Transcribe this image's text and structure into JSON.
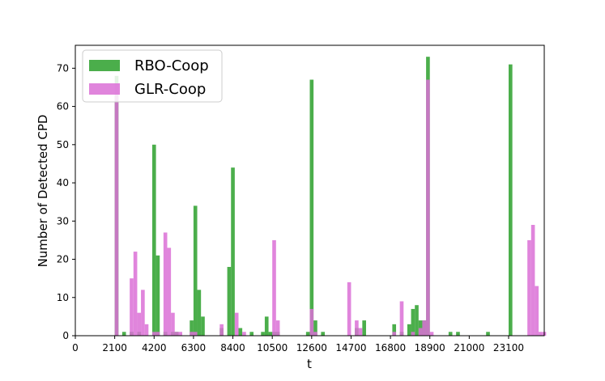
{
  "chart_data": {
    "type": "bar",
    "xlabel": "t",
    "ylabel": "Number of Detected CPD",
    "xlim": [
      0,
      25000
    ],
    "ylim": [
      0,
      76
    ],
    "x_ticks": [
      "0",
      "2100",
      "4200",
      "6300",
      "8400",
      "10500",
      "12600",
      "14700",
      "16800",
      "18900",
      "21000",
      "23100"
    ],
    "x_tick_values": [
      0,
      2100,
      4200,
      6300,
      8400,
      10500,
      12600,
      14700,
      16800,
      18900,
      21000,
      23100
    ],
    "y_ticks": [
      "0",
      "10",
      "20",
      "30",
      "40",
      "50",
      "60",
      "70"
    ],
    "y_tick_values": [
      0,
      10,
      20,
      30,
      40,
      50,
      60,
      70
    ],
    "grid": false,
    "legend_position": "top-left",
    "bin_width": 200,
    "series": [
      {
        "name": "RBO-Coop",
        "color": "#2ca02c",
        "bins": [
          [
            2100,
            68
          ],
          [
            2500,
            1
          ],
          [
            2900,
            1
          ],
          [
            3300,
            1
          ],
          [
            4100,
            50
          ],
          [
            4300,
            21
          ],
          [
            4700,
            1
          ],
          [
            5100,
            1
          ],
          [
            5300,
            1
          ],
          [
            6100,
            4
          ],
          [
            6300,
            34
          ],
          [
            6500,
            12
          ],
          [
            6700,
            5
          ],
          [
            7700,
            2
          ],
          [
            8100,
            18
          ],
          [
            8300,
            44
          ],
          [
            8700,
            2
          ],
          [
            9300,
            1
          ],
          [
            9900,
            1
          ],
          [
            10100,
            5
          ],
          [
            10300,
            1
          ],
          [
            10500,
            1
          ],
          [
            10700,
            1
          ],
          [
            12300,
            1
          ],
          [
            12500,
            67
          ],
          [
            12700,
            4
          ],
          [
            13100,
            1
          ],
          [
            14900,
            2
          ],
          [
            15300,
            4
          ],
          [
            16900,
            3
          ],
          [
            17300,
            1
          ],
          [
            17700,
            3
          ],
          [
            17900,
            7
          ],
          [
            18100,
            8
          ],
          [
            18300,
            4
          ],
          [
            18500,
            4
          ],
          [
            18700,
            73
          ],
          [
            19900,
            1
          ],
          [
            20300,
            1
          ],
          [
            21900,
            1
          ],
          [
            23100,
            71
          ]
        ]
      },
      {
        "name": "GLR-Coop",
        "color": "#da70d6",
        "bins": [
          [
            2100,
            66
          ],
          [
            2900,
            15
          ],
          [
            3100,
            22
          ],
          [
            3300,
            6
          ],
          [
            3500,
            12
          ],
          [
            3700,
            3
          ],
          [
            4100,
            1
          ],
          [
            4300,
            1
          ],
          [
            4700,
            27
          ],
          [
            4900,
            23
          ],
          [
            5100,
            6
          ],
          [
            5300,
            1
          ],
          [
            5500,
            1
          ],
          [
            6100,
            1
          ],
          [
            6300,
            1
          ],
          [
            7700,
            3
          ],
          [
            8500,
            6
          ],
          [
            8900,
            1
          ],
          [
            10500,
            25
          ],
          [
            10700,
            4
          ],
          [
            12500,
            7
          ],
          [
            12700,
            1
          ],
          [
            14500,
            14
          ],
          [
            14900,
            4
          ],
          [
            15100,
            2
          ],
          [
            16900,
            1
          ],
          [
            17300,
            9
          ],
          [
            17900,
            1
          ],
          [
            18300,
            2
          ],
          [
            18500,
            4
          ],
          [
            18700,
            67
          ],
          [
            18900,
            1
          ],
          [
            24100,
            25
          ],
          [
            24300,
            29
          ],
          [
            24500,
            13
          ],
          [
            24700,
            1
          ],
          [
            24900,
            1
          ]
        ]
      }
    ]
  }
}
